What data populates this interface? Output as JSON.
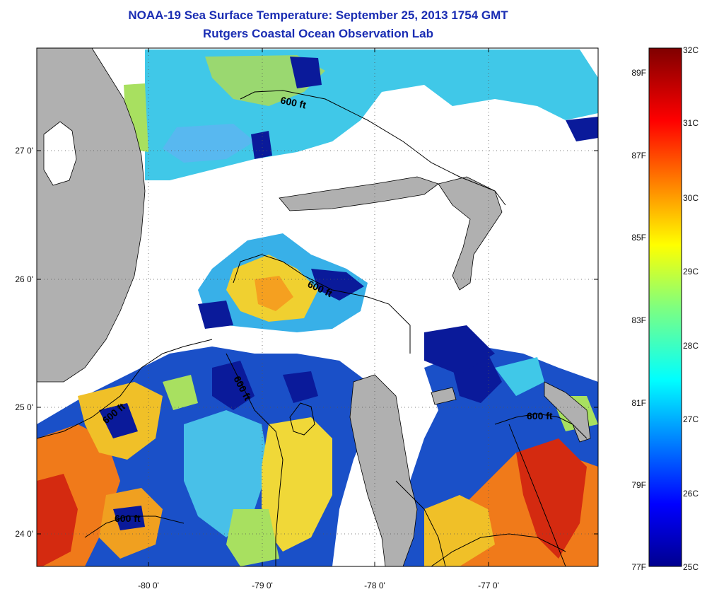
{
  "header": {
    "title_line1": "NOAA-19 Sea Surface Temperature:  September 25, 2013 1754 GMT",
    "title_line2": "Rutgers Coastal Ocean Observation Lab"
  },
  "map": {
    "lat_labels": [
      "27 0'",
      "26 0'",
      "25 0'",
      "24 0'"
    ],
    "lon_labels": [
      "-80 0'",
      "-79 0'",
      "-78 0'",
      "-77 0'"
    ],
    "contour_labels": [
      "600 ft",
      "600 ft",
      "600 ft",
      "600 ft",
      "600 ft",
      "600 ft"
    ],
    "colors": {
      "land": "#b0b0b0",
      "cloud": "#ffffff",
      "warm": "#f07a1a",
      "hot": "#d42a10",
      "yellow": "#f0e030",
      "green": "#a8e060",
      "cyan": "#40d0f0",
      "blue": "#1e6ad8",
      "navy": "#0a1a9a"
    }
  },
  "colorbar": {
    "celsius_labels": [
      "32C",
      "31C",
      "30C",
      "29C",
      "28C",
      "27C",
      "26C",
      "25C"
    ],
    "fahrenheit_labels": [
      "89F",
      "87F",
      "85F",
      "83F",
      "81F",
      "79F",
      "77F"
    ]
  }
}
